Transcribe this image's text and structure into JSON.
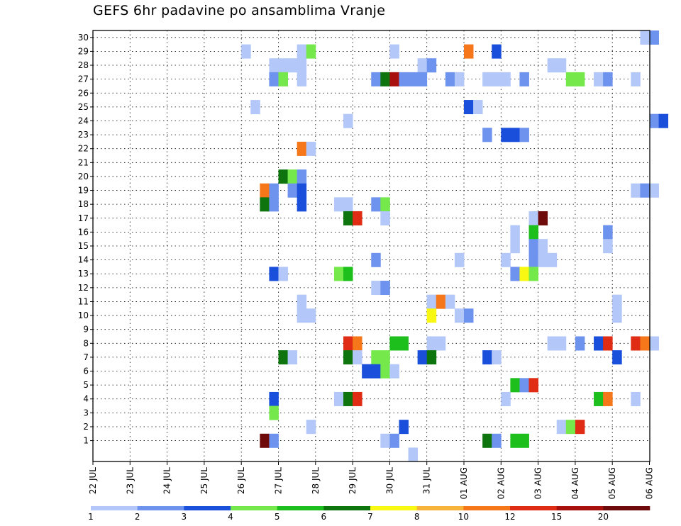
{
  "chart_data": {
    "type": "heatmap",
    "title": "GEFS 6hr padavine po ansamblima Vranje",
    "xlabel": "",
    "ylabel": "",
    "x_ticks": [
      "22 JUL",
      "23 JUL",
      "24 JUL",
      "25 JUL",
      "26 JUL",
      "27 JUL",
      "28 JUL",
      "29 JUL",
      "30 JUL",
      "31 JUL",
      "01 AUG",
      "02 AUG",
      "03 AUG",
      "04 AUG",
      "05 AUG",
      "06 AUG"
    ],
    "y_ticks": [
      "1",
      "2",
      "3",
      "4",
      "5",
      "6",
      "7",
      "8",
      "9",
      "10",
      "11",
      "12",
      "13",
      "14",
      "15",
      "16",
      "17",
      "18",
      "19",
      "20",
      "21",
      "22",
      "23",
      "24",
      "25",
      "26",
      "27",
      "28",
      "29",
      "30"
    ],
    "ylim": [
      1,
      30
    ],
    "time_step_hours": 6,
    "grid": true,
    "legend_position": "bottom",
    "colorbar": {
      "labels": [
        "1",
        "2",
        "3",
        "4",
        "5",
        "6",
        "7",
        "8",
        "10",
        "12",
        "15",
        "20"
      ],
      "colors": [
        "#b3c8f8",
        "#6e93ee",
        "#1a4fdc",
        "#75e84c",
        "#1dbf1d",
        "#0e740e",
        "#f8f813",
        "#f8b43a",
        "#f5771a",
        "#e02c14",
        "#a8100e",
        "#6e0a0a"
      ]
    },
    "cells": [
      [
        30,
        59,
        1
      ],
      [
        30,
        60,
        2
      ],
      [
        29,
        16,
        1
      ],
      [
        29,
        22,
        1
      ],
      [
        29,
        23,
        4
      ],
      [
        29,
        32,
        1
      ],
      [
        29,
        40,
        9
      ],
      [
        29,
        43,
        3
      ],
      [
        28,
        19,
        1
      ],
      [
        28,
        20,
        1
      ],
      [
        28,
        21,
        1
      ],
      [
        28,
        22,
        1
      ],
      [
        28,
        35,
        1
      ],
      [
        28,
        36,
        2
      ],
      [
        28,
        49,
        1
      ],
      [
        28,
        50,
        1
      ],
      [
        27,
        19,
        2
      ],
      [
        27,
        20,
        4
      ],
      [
        27,
        22,
        1
      ],
      [
        27,
        30,
        2
      ],
      [
        27,
        31,
        6
      ],
      [
        27,
        32,
        11
      ],
      [
        27,
        33,
        2
      ],
      [
        27,
        34,
        2
      ],
      [
        27,
        35,
        2
      ],
      [
        27,
        38,
        2
      ],
      [
        27,
        39,
        1
      ],
      [
        27,
        42,
        1
      ],
      [
        27,
        43,
        1
      ],
      [
        27,
        44,
        1
      ],
      [
        27,
        46,
        2
      ],
      [
        27,
        51,
        4
      ],
      [
        27,
        52,
        4
      ],
      [
        27,
        54,
        1
      ],
      [
        27,
        55,
        2
      ],
      [
        27,
        58,
        1
      ],
      [
        25,
        17,
        1
      ],
      [
        25,
        40,
        3
      ],
      [
        25,
        41,
        1
      ],
      [
        24,
        27,
        1
      ],
      [
        24,
        60,
        2
      ],
      [
        24,
        61,
        3
      ],
      [
        23,
        42,
        2
      ],
      [
        23,
        44,
        3
      ],
      [
        23,
        45,
        3
      ],
      [
        23,
        46,
        2
      ],
      [
        22,
        22,
        9
      ],
      [
        22,
        23,
        1
      ],
      [
        20,
        20,
        6
      ],
      [
        20,
        21,
        4
      ],
      [
        20,
        22,
        2
      ],
      [
        19,
        18,
        9
      ],
      [
        19,
        19,
        2
      ],
      [
        19,
        21,
        2
      ],
      [
        19,
        22,
        3
      ],
      [
        19,
        58,
        1
      ],
      [
        19,
        59,
        2
      ],
      [
        19,
        60,
        1
      ],
      [
        18,
        18,
        6
      ],
      [
        18,
        19,
        2
      ],
      [
        18,
        22,
        3
      ],
      [
        18,
        26,
        1
      ],
      [
        18,
        27,
        1
      ],
      [
        18,
        30,
        2
      ],
      [
        18,
        31,
        4
      ],
      [
        17,
        27,
        6
      ],
      [
        17,
        28,
        10
      ],
      [
        17,
        31,
        1
      ],
      [
        17,
        47,
        1
      ],
      [
        17,
        48,
        12
      ],
      [
        16,
        45,
        1
      ],
      [
        16,
        47,
        5
      ],
      [
        16,
        55,
        2
      ],
      [
        15,
        45,
        1
      ],
      [
        15,
        47,
        2
      ],
      [
        15,
        48,
        1
      ],
      [
        15,
        55,
        1
      ],
      [
        14,
        30,
        2
      ],
      [
        14,
        39,
        1
      ],
      [
        14,
        44,
        1
      ],
      [
        14,
        47,
        2
      ],
      [
        14,
        48,
        1
      ],
      [
        14,
        49,
        1
      ],
      [
        13,
        19,
        3
      ],
      [
        13,
        20,
        1
      ],
      [
        13,
        26,
        4
      ],
      [
        13,
        27,
        5
      ],
      [
        13,
        45,
        2
      ],
      [
        13,
        46,
        7
      ],
      [
        13,
        47,
        4
      ],
      [
        12,
        30,
        1
      ],
      [
        12,
        31,
        2
      ],
      [
        11,
        22,
        1
      ],
      [
        11,
        36,
        1
      ],
      [
        11,
        37,
        9
      ],
      [
        11,
        38,
        1
      ],
      [
        11,
        56,
        1
      ],
      [
        10,
        22,
        1
      ],
      [
        10,
        23,
        1
      ],
      [
        10,
        36,
        7
      ],
      [
        10,
        39,
        1
      ],
      [
        10,
        40,
        2
      ],
      [
        10,
        56,
        1
      ],
      [
        8,
        27,
        10
      ],
      [
        8,
        28,
        9
      ],
      [
        8,
        32,
        5
      ],
      [
        8,
        33,
        5
      ],
      [
        8,
        36,
        1
      ],
      [
        8,
        37,
        1
      ],
      [
        8,
        49,
        1
      ],
      [
        8,
        50,
        1
      ],
      [
        8,
        52,
        2
      ],
      [
        8,
        54,
        3
      ],
      [
        8,
        55,
        10
      ],
      [
        8,
        58,
        10
      ],
      [
        8,
        59,
        9
      ],
      [
        8,
        60,
        1
      ],
      [
        7,
        20,
        6
      ],
      [
        7,
        21,
        1
      ],
      [
        7,
        27,
        6
      ],
      [
        7,
        28,
        1
      ],
      [
        7,
        30,
        4
      ],
      [
        7,
        31,
        4
      ],
      [
        7,
        35,
        3
      ],
      [
        7,
        36,
        6
      ],
      [
        7,
        42,
        3
      ],
      [
        7,
        43,
        1
      ],
      [
        7,
        56,
        3
      ],
      [
        6,
        29,
        3
      ],
      [
        6,
        30,
        3
      ],
      [
        6,
        31,
        4
      ],
      [
        6,
        32,
        1
      ],
      [
        5,
        45,
        5
      ],
      [
        5,
        46,
        2
      ],
      [
        5,
        47,
        10
      ],
      [
        4,
        19,
        3
      ],
      [
        4,
        26,
        1
      ],
      [
        4,
        27,
        6
      ],
      [
        4,
        28,
        10
      ],
      [
        4,
        44,
        1
      ],
      [
        4,
        54,
        5
      ],
      [
        4,
        55,
        9
      ],
      [
        4,
        58,
        1
      ],
      [
        3,
        19,
        4
      ],
      [
        2,
        23,
        1
      ],
      [
        2,
        33,
        3
      ],
      [
        2,
        50,
        1
      ],
      [
        2,
        51,
        4
      ],
      [
        2,
        52,
        10
      ],
      [
        1,
        18,
        12
      ],
      [
        1,
        19,
        2
      ],
      [
        1,
        31,
        1
      ],
      [
        1,
        32,
        2
      ],
      [
        1,
        42,
        6
      ],
      [
        1,
        43,
        2
      ],
      [
        1,
        45,
        5
      ],
      [
        1,
        46,
        5
      ],
      [
        0,
        34,
        1
      ]
    ]
  }
}
